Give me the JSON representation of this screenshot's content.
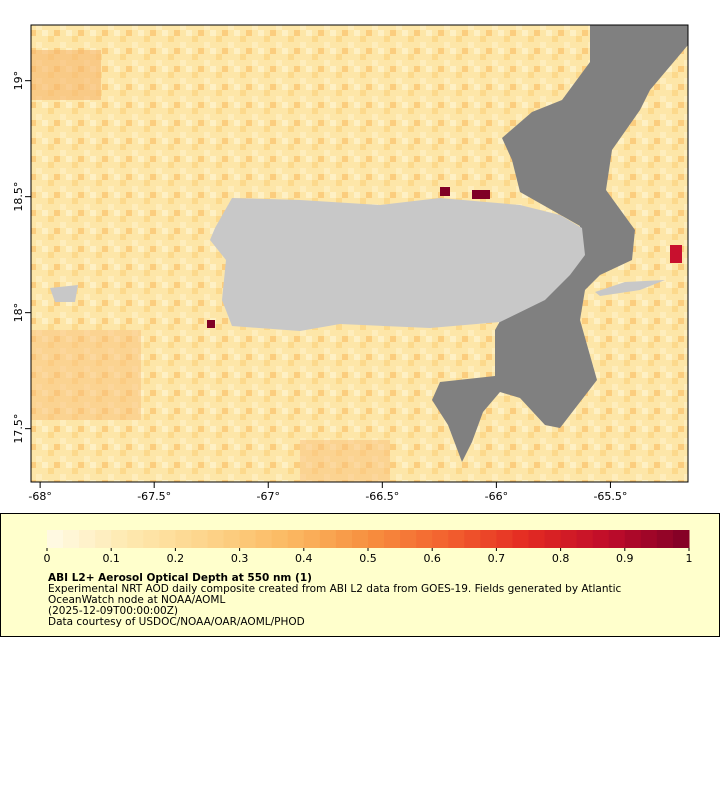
{
  "map": {
    "xlim": [
      -68.04,
      -65.16
    ],
    "ylim": [
      17.27,
      19.24
    ],
    "xticks": [
      {
        "value": -68,
        "label": "-68°"
      },
      {
        "value": -67.5,
        "label": "-67.5°"
      },
      {
        "value": -67,
        "label": "-67°"
      },
      {
        "value": -66.5,
        "label": "-66.5°"
      },
      {
        "value": -66,
        "label": "-66°"
      },
      {
        "value": -65.5,
        "label": "-65.5°"
      }
    ],
    "yticks": [
      {
        "value": 17.5,
        "label": "17.5°"
      },
      {
        "value": 18,
        "label": "18°"
      },
      {
        "value": 18.5,
        "label": "18.5°"
      },
      {
        "value": 19,
        "label": "19°"
      }
    ],
    "colorbar": {
      "lim": [
        0,
        1
      ],
      "ticks": [
        0,
        0.1,
        0.2,
        0.3,
        0.4,
        0.5,
        0.6,
        0.7,
        0.8,
        0.9,
        1
      ],
      "colors": [
        "#fffbe6",
        "#fee9b0",
        "#fdd48a",
        "#fbb962",
        "#f7903f",
        "#f2602e",
        "#e32a22",
        "#bf0c2a",
        "#800026"
      ]
    },
    "caption": {
      "title": "ABI L2+ Aerosol Optical Depth at 550 nm (1)",
      "lines": [
        "Experimental NRT AOD daily composite created from ABI L2 data from GOES-19. Fields generated by Atlantic",
        "OceanWatch node at NOAA/AOML",
        "(2025-12-09T00:00:00Z)",
        "Data courtesy of USDOC/NOAA/OAR/AOML/PHOD"
      ]
    }
  }
}
